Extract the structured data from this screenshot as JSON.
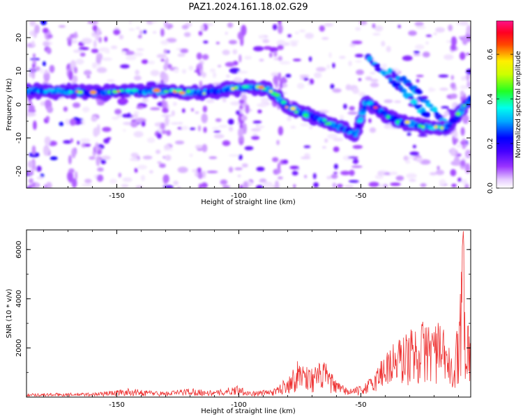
{
  "title": "PAZ1.2024.161.18.02.G29",
  "chart_data": [
    {
      "type": "heatmap",
      "title": "PAZ1.2024.161.18.02.G29",
      "xlabel": "Height of straight line (km)",
      "ylabel": "Frequency (Hz)",
      "xlim": [
        -187,
        -5
      ],
      "ylim": [
        -25,
        25
      ],
      "xticks": [
        -150,
        -100,
        -50
      ],
      "yticks": [
        -20,
        -10,
        0,
        10,
        20
      ],
      "colorbar": {
        "label": "Normalized spectral amplitude",
        "range": [
          0,
          0.75
        ],
        "ticks": [
          0.0,
          0.2,
          0.4,
          0.6
        ],
        "colormap": "white-purple-blue-cyan-green-yellow-red-magenta"
      },
      "ridge": {
        "description": "dominant spectral ridge",
        "points": [
          [
            -187,
            4
          ],
          [
            -175,
            4
          ],
          [
            -160,
            3.5
          ],
          [
            -145,
            4
          ],
          [
            -130,
            4
          ],
          [
            -115,
            3.5
          ],
          [
            -100,
            5
          ],
          [
            -90,
            5
          ],
          [
            -85,
            3
          ],
          [
            -80,
            -1
          ],
          [
            -72,
            -3
          ],
          [
            -65,
            -5
          ],
          [
            -58,
            -7
          ],
          [
            -52,
            -9
          ],
          [
            -48,
            1
          ],
          [
            -42,
            -2
          ],
          [
            -35,
            -5
          ],
          [
            -28,
            -6
          ],
          [
            -20,
            -7
          ],
          [
            -15,
            -7
          ],
          [
            -10,
            -3
          ],
          [
            -5,
            2
          ]
        ]
      },
      "secondary_ridges": [
        {
          "points": [
            [
              -47,
              14
            ],
            [
              -40,
              9
            ],
            [
              -30,
              2
            ],
            [
              -22,
              -4
            ]
          ]
        },
        {
          "points": [
            [
              -38,
              10
            ],
            [
              -30,
              6
            ],
            [
              -22,
              0
            ],
            [
              -15,
              -6
            ]
          ]
        }
      ]
    },
    {
      "type": "line",
      "xlabel": "Height of straight line (km)",
      "ylabel": "SNR (10 * v/v)",
      "xlim": [
        -187,
        -5
      ],
      "ylim": [
        0,
        6800
      ],
      "xticks": [
        -150,
        -100,
        -50
      ],
      "yticks": [
        2000,
        4000,
        6000
      ],
      "color": "#ee3333",
      "envelope": [
        [
          -187,
          150
        ],
        [
          -160,
          180
        ],
        [
          -145,
          350
        ],
        [
          -130,
          220
        ],
        [
          -120,
          380
        ],
        [
          -110,
          250
        ],
        [
          -100,
          500
        ],
        [
          -95,
          220
        ],
        [
          -85,
          350
        ],
        [
          -80,
          900
        ],
        [
          -75,
          1600
        ],
        [
          -70,
          1200
        ],
        [
          -65,
          1500
        ],
        [
          -60,
          650
        ],
        [
          -55,
          350
        ],
        [
          -50,
          450
        ],
        [
          -45,
          900
        ],
        [
          -40,
          2000
        ],
        [
          -35,
          2400
        ],
        [
          -30,
          2800
        ],
        [
          -25,
          3100
        ],
        [
          -20,
          3300
        ],
        [
          -15,
          2600
        ],
        [
          -12,
          1200
        ],
        [
          -10,
          3700
        ],
        [
          -8,
          6800
        ],
        [
          -7,
          3000
        ],
        [
          -5,
          3600
        ]
      ]
    }
  ]
}
